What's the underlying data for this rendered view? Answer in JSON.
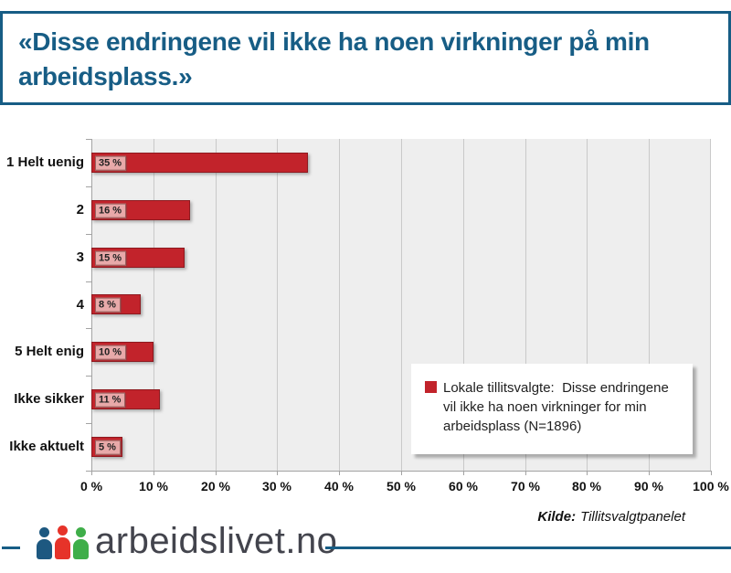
{
  "header": {
    "title": "«Disse endringene vil ikke ha noen virkninger på min arbeidsplass.»",
    "accent_color": "#175d85"
  },
  "chart_data": {
    "type": "bar",
    "orientation": "horizontal",
    "title": "«Disse endringene vil ikke ha noen virkninger på min arbeidsplass.»",
    "categories": [
      "1 Helt uenig",
      "2",
      "3",
      "4",
      "5 Helt enig",
      "Ikke sikker",
      "Ikke aktuelt"
    ],
    "values": [
      35,
      16,
      15,
      8,
      10,
      11,
      5
    ],
    "value_labels": [
      "35 %",
      "16 %",
      "15 %",
      "8 %",
      "10 %",
      "11 %",
      "5 %"
    ],
    "x_ticks": [
      "0 %",
      "10 %",
      "20 %",
      "30 %",
      "40 %",
      "50 %",
      "60 %",
      "70 %",
      "80 %",
      "90 %",
      "100 %"
    ],
    "xlim": [
      0,
      100
    ],
    "xlabel": "",
    "ylabel": "",
    "grid": true,
    "bar_color": "#c2232b",
    "plot_background": "#eeeeee",
    "legend_position": "inside-right"
  },
  "legend": {
    "text": "Lokale tillitsvalgte:  Disse endringene vil ikke ha noen virkninger for min arbeidsplass (N=1896)",
    "marker_color": "#c2232b"
  },
  "source": {
    "label": "Kilde:",
    "text": "Tillitsvalgtpanelet"
  },
  "footer": {
    "brand": "arbeidslivet.no",
    "people_colors": [
      "#1d5880",
      "#e63329",
      "#3fae49"
    ],
    "line_color": "#175d85"
  }
}
